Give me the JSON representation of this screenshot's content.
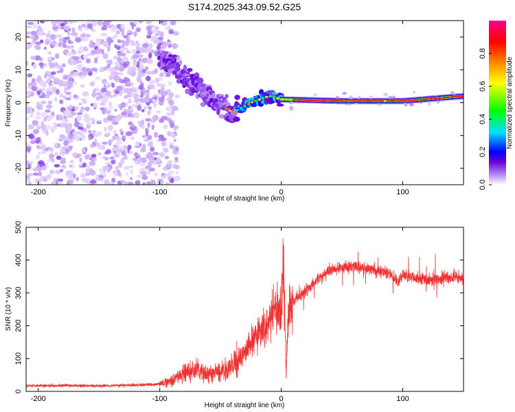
{
  "title": "S174.2025.343.09.52.G25",
  "chart_data": [
    {
      "type": "heatmap",
      "xlabel": "Height of straight line (km)",
      "ylabel": "Frequency (Hz)",
      "xlim": [
        -210,
        150
      ],
      "ylim": [
        -25,
        25
      ],
      "xticks": [
        -200,
        -100,
        0,
        100
      ],
      "yticks": [
        -20,
        -10,
        0,
        10,
        20
      ],
      "colorbar": {
        "label": "Normalized spectral amplitude",
        "range": [
          0,
          1
        ],
        "ticks": [
          "0.0",
          "0.2",
          "0.4",
          "0.6",
          "0.8"
        ],
        "colormap": [
          "#ffffff",
          "#b58cf5",
          "#6400d8",
          "#0000ff",
          "#00e0ff",
          "#00ff00",
          "#ffff00",
          "#ff8000",
          "#ff0000",
          "#ff0088"
        ]
      },
      "features": [
        {
          "name": "scattered noise",
          "x_range": [
            -210,
            -95
          ],
          "freq_range": [
            -25,
            25
          ],
          "amplitude": 0.1
        },
        {
          "name": "descending trace",
          "points": [
            [
              -100,
              15
            ],
            [
              -80,
              8
            ],
            [
              -60,
              2
            ],
            [
              -40,
              -3
            ],
            [
              -25,
              0
            ],
            [
              -10,
              2
            ],
            [
              0,
              1
            ],
            [
              50,
              0.5
            ],
            [
              100,
              0.5
            ],
            [
              150,
              2
            ]
          ]
        },
        {
          "name": "strong stable line",
          "x_range": [
            0,
            150
          ],
          "frequency": 0.5,
          "amplitude": 0.95
        }
      ]
    },
    {
      "type": "line",
      "xlabel": "Height of straight line (km)",
      "ylabel": "SNR (10 * v/v)",
      "xlim": [
        -210,
        150
      ],
      "ylim": [
        0,
        500
      ],
      "xticks": [
        -200,
        -100,
        0,
        100
      ],
      "yticks": [
        0,
        100,
        200,
        300,
        400,
        500
      ],
      "series": [
        {
          "name": "SNR",
          "color": "#ee3333",
          "x": [
            -210,
            -200,
            -180,
            -160,
            -140,
            -120,
            -100,
            -90,
            -80,
            -70,
            -60,
            -50,
            -40,
            -30,
            -20,
            -10,
            -5,
            0,
            2,
            4,
            6,
            10,
            20,
            30,
            40,
            50,
            60,
            70,
            80,
            90,
            95,
            100,
            110,
            120,
            130,
            140,
            150
          ],
          "values": [
            18,
            18,
            18,
            17,
            18,
            19,
            22,
            35,
            55,
            65,
            50,
            60,
            75,
            120,
            170,
            210,
            250,
            250,
            390,
            50,
            250,
            270,
            310,
            340,
            370,
            380,
            380,
            375,
            365,
            360,
            330,
            355,
            345,
            340,
            345,
            350,
            345
          ]
        }
      ]
    }
  ]
}
